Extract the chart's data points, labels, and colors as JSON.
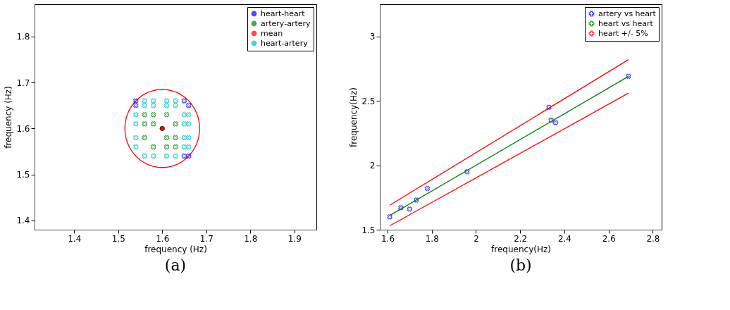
{
  "chart_data": [
    {
      "type": "scatter",
      "xlabel": "frequency (Hz)",
      "ylabel": "frequency (Hz)",
      "annotations": [
        "(a)"
      ],
      "xlim": [
        1.31,
        1.95
      ],
      "ylim": [
        1.38,
        1.87
      ],
      "xticks": [
        1.4,
        1.5,
        1.6,
        1.7,
        1.8,
        1.9
      ],
      "yticks": [
        1.4,
        1.5,
        1.6,
        1.7,
        1.8
      ],
      "grid": false,
      "legend": "top right",
      "series": [
        {
          "name": "heart-heart",
          "color": "#0000ff",
          "marker": "cross",
          "x": [
            1.54,
            1.54,
            1.65,
            1.66,
            1.65,
            1.66
          ],
          "values": [
            1.66,
            1.65,
            1.66,
            1.65,
            1.54,
            1.54
          ]
        },
        {
          "name": "artery-artery",
          "color": "#008000",
          "marker": "cross",
          "x": [
            1.56,
            1.58,
            1.61,
            1.56,
            1.58,
            1.63,
            1.56,
            1.61,
            1.63,
            1.58,
            1.61,
            1.63
          ],
          "values": [
            1.63,
            1.63,
            1.63,
            1.61,
            1.61,
            1.61,
            1.58,
            1.58,
            1.58,
            1.56,
            1.56,
            1.56
          ]
        },
        {
          "name": "mean",
          "color": "#ff0000",
          "marker": "circle",
          "x": [
            1.6
          ],
          "values": [
            1.6
          ]
        },
        {
          "name": "heart-artery",
          "color": "#00bfbf",
          "marker": "cross",
          "x": [
            1.56,
            1.58,
            1.61,
            1.63,
            1.56,
            1.58,
            1.61,
            1.63,
            1.54,
            1.65,
            1.66,
            1.54,
            1.65,
            1.66,
            1.54,
            1.65,
            1.66,
            1.54,
            1.65,
            1.66,
            1.56,
            1.58,
            1.61,
            1.63
          ],
          "values": [
            1.66,
            1.66,
            1.66,
            1.66,
            1.65,
            1.65,
            1.65,
            1.65,
            1.63,
            1.63,
            1.63,
            1.61,
            1.61,
            1.61,
            1.58,
            1.58,
            1.58,
            1.56,
            1.56,
            1.56,
            1.54,
            1.54,
            1.54,
            1.54
          ]
        }
      ]
    },
    {
      "type": "scatter",
      "xlabel": "frequency(Hz)",
      "ylabel": "frequency(Hz)",
      "annotations": [
        "(b)"
      ],
      "xlim": [
        1.565,
        2.84
      ],
      "ylim": [
        1.5,
        3.25
      ],
      "xticks": [
        1.6,
        1.8,
        2.0,
        2.2,
        2.4,
        2.6,
        2.8
      ],
      "yticks": [
        1.5,
        2.0,
        2.5,
        3.0
      ],
      "grid": false,
      "legend": "top right",
      "series": [
        {
          "name": "artery vs heart",
          "color": "#0000ff",
          "marker": "cross",
          "x": [
            1.61,
            1.66,
            1.7,
            1.73,
            1.78,
            1.96,
            2.33,
            2.34,
            2.36,
            2.69
          ],
          "values": [
            1.6,
            1.67,
            1.66,
            1.73,
            1.82,
            1.95,
            2.45,
            2.35,
            2.33,
            2.69
          ]
        },
        {
          "name": "heart vs heart",
          "type": "line",
          "color": "#008000",
          "marker": "none",
          "x": [
            1.61,
            2.69
          ],
          "values": [
            1.61,
            2.69
          ]
        },
        {
          "name": "heart +/- 5%",
          "type": "line",
          "color": "#ff0000",
          "marker": "none",
          "x": [
            1.61,
            2.69
          ],
          "values": [
            1.69,
            2.82
          ]
        },
        {
          "type": "line",
          "color": "#ff0000",
          "marker": "none",
          "x": [
            1.61,
            2.69
          ],
          "values": [
            1.53,
            2.56
          ]
        }
      ]
    }
  ]
}
